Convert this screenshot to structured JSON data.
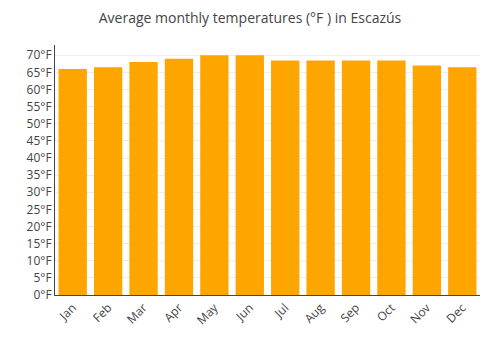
{
  "chart_data": {
    "type": "bar",
    "title": "Average monthly temperatures (°F ) in Escazús",
    "categories": [
      "Jan",
      "Feb",
      "Mar",
      "Apr",
      "May",
      "Jun",
      "Jul",
      "Aug",
      "Sep",
      "Oct",
      "Nov",
      "Dec"
    ],
    "values": [
      66,
      66.5,
      68,
      69,
      70,
      70,
      68.5,
      68.5,
      68.5,
      68.5,
      67,
      66.5
    ],
    "color": "#FFA500",
    "ylim": [
      0,
      73
    ],
    "yticks": [
      {
        "value": 0,
        "label": "0°F"
      },
      {
        "value": 5,
        "label": "5°F"
      },
      {
        "value": 10,
        "label": "10°F"
      },
      {
        "value": 15,
        "label": "15°F"
      },
      {
        "value": 20,
        "label": "20°F"
      },
      {
        "value": 25,
        "label": "25°F"
      },
      {
        "value": 30,
        "label": "30°F"
      },
      {
        "value": 35,
        "label": "35°F"
      },
      {
        "value": 40,
        "label": "40°F"
      },
      {
        "value": 45,
        "label": "45°F"
      },
      {
        "value": 50,
        "label": "50°F"
      },
      {
        "value": 55,
        "label": "55°F"
      },
      {
        "value": 60,
        "label": "60°F"
      },
      {
        "value": 65,
        "label": "65°F"
      },
      {
        "value": 70,
        "label": "70°F"
      }
    ],
    "grid": true
  }
}
